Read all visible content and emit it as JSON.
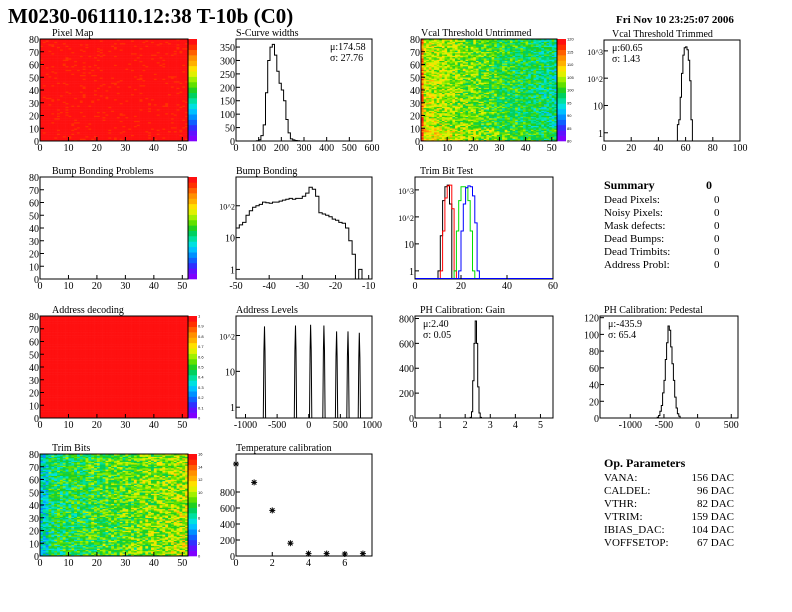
{
  "header": {
    "title": "M0230-061110.12:38 T-10b (C0)",
    "date": "Fri Nov 10 23:25:07 2006"
  },
  "summary": {
    "title": "Summary",
    "total": "0",
    "rows": [
      {
        "label": "Dead Pixels:",
        "value": "0"
      },
      {
        "label": "Noisy Pixels:",
        "value": "0"
      },
      {
        "label": "Mask defects:",
        "value": "0"
      },
      {
        "label": "Dead Bumps:",
        "value": "0"
      },
      {
        "label": "Dead Trimbits:",
        "value": "0"
      },
      {
        "label": "Address Probl:",
        "value": "0"
      }
    ]
  },
  "op_parameters": {
    "title": "Op. Parameters",
    "rows": [
      {
        "label": "VANA:",
        "value": "156 DAC"
      },
      {
        "label": "CALDEL:",
        "value": "96 DAC"
      },
      {
        "label": "VTHR:",
        "value": "82 DAC"
      },
      {
        "label": "VTRIM:",
        "value": "159 DAC"
      },
      {
        "label": "IBIAS_DAC:",
        "value": "104 DAC"
      },
      {
        "label": "VOFFSETOP:",
        "value": "67 DAC"
      }
    ]
  },
  "palette": [
    "#8000ff",
    "#6010ff",
    "#3030ff",
    "#1060ff",
    "#0090ff",
    "#00c0ff",
    "#00e0e0",
    "#00e0a0",
    "#00d060",
    "#20d020",
    "#60e000",
    "#a0f000",
    "#e0f000",
    "#ffe000",
    "#ffb000",
    "#ff9000",
    "#ff6000",
    "#ff3000",
    "#ff1010"
  ],
  "chart_data": [
    {
      "id": "pixel_map",
      "type": "heatmap",
      "title": "Pixel Map",
      "xlim": [
        0,
        52
      ],
      "ylim": [
        0,
        80
      ],
      "zlim": [
        0,
        10
      ],
      "xticks": [
        0,
        10,
        20,
        30,
        40,
        50
      ],
      "yticks": [
        0,
        10,
        20,
        30,
        40,
        50,
        60,
        70,
        80
      ],
      "palette_labels": []
    },
    {
      "id": "scurve_widths",
      "type": "bar",
      "title": "S-Curve widths",
      "xlim": [
        0,
        600
      ],
      "ylim": [
        0,
        380
      ],
      "log": false,
      "xticks": [
        0,
        100,
        200,
        300,
        400,
        500,
        600
      ],
      "yticks": [
        0,
        50,
        100,
        150,
        200,
        250,
        300,
        350
      ],
      "bin_width": 10,
      "x": [
        90,
        100,
        110,
        120,
        130,
        140,
        150,
        160,
        170,
        180,
        190,
        200,
        210,
        220,
        230,
        240,
        250,
        260,
        270,
        280
      ],
      "series": [
        {
          "color": "#000000",
          "values": [
            1,
            5,
            20,
            60,
            180,
            300,
            350,
            360,
            320,
            260,
            215,
            190,
            150,
            80,
            30,
            8,
            4,
            2,
            1,
            0
          ]
        }
      ],
      "stats": [
        "μ:174.58",
        "σ: 27.76"
      ]
    },
    {
      "id": "vcal_untrimmed",
      "type": "heatmap",
      "title": "Vcal Threshold Untrimmed",
      "xlim": [
        0,
        52
      ],
      "ylim": [
        0,
        80
      ],
      "zlim": [
        80,
        120
      ],
      "xticks": [
        0,
        10,
        20,
        30,
        40,
        50
      ],
      "yticks": [
        0,
        10,
        20,
        30,
        40,
        50,
        60,
        70,
        80
      ],
      "palette_labels": [
        "120",
        "115",
        "110",
        "105",
        "100",
        "95",
        "90",
        "85",
        "80"
      ]
    },
    {
      "id": "vcal_trimmed",
      "type": "bar",
      "title": "Vcal Threshold Trimmed",
      "xlim": [
        0,
        100
      ],
      "ylim": [
        0.5,
        2500
      ],
      "log": true,
      "xticks": [
        0,
        20,
        40,
        60,
        80,
        100
      ],
      "yticks": [
        1,
        10,
        100,
        1000
      ],
      "ytick_labels": [
        "1",
        "10",
        "10^2",
        "10^3"
      ],
      "bin_width": 1,
      "x": [
        54,
        55,
        56,
        57,
        58,
        59,
        60,
        61,
        62,
        63,
        64
      ],
      "series": [
        {
          "color": "#000000",
          "values": [
            2,
            3,
            20,
            150,
            700,
            1300,
            1400,
            1100,
            450,
            80,
            3
          ]
        }
      ],
      "stats": [
        "μ:60.65",
        "σ: 1.43"
      ]
    },
    {
      "id": "bump_bonding_problems",
      "type": "heatmap",
      "title": "Bump Bonding Problems",
      "xlim": [
        0,
        52
      ],
      "ylim": [
        0,
        80
      ],
      "zlim": [
        0,
        2
      ],
      "xticks": [
        0,
        10,
        20,
        30,
        40,
        50
      ],
      "yticks": [
        0,
        10,
        20,
        30,
        40,
        50,
        60,
        70,
        80
      ],
      "palette_labels": [],
      "empty": true
    },
    {
      "id": "bump_bonding",
      "type": "bar",
      "title": "Bump Bonding",
      "xlim": [
        -50,
        -9
      ],
      "ylim": [
        0.5,
        800
      ],
      "log": true,
      "xticks": [
        -50,
        -40,
        -30,
        -20,
        -10
      ],
      "yticks": [
        1,
        10,
        100
      ],
      "ytick_labels": [
        "1",
        "10",
        "10^2"
      ],
      "bin_width": 1,
      "x": [
        -50,
        -49,
        -48,
        -47,
        -46,
        -45,
        -44,
        -43,
        -42,
        -41,
        -40,
        -39,
        -38,
        -37,
        -36,
        -35,
        -34,
        -33,
        -32,
        -31,
        -30,
        -29,
        -28,
        -27,
        -26,
        -25,
        -24,
        -23,
        -22,
        -21,
        -20,
        -19,
        -18,
        -17,
        -16,
        -15,
        -14,
        -13,
        -12
      ],
      "series": [
        {
          "color": "#000000",
          "values": [
            20,
            25,
            30,
            50,
            70,
            90,
            100,
            110,
            130,
            125,
            120,
            130,
            130,
            140,
            150,
            160,
            170,
            160,
            170,
            170,
            200,
            250,
            380,
            330,
            200,
            60,
            55,
            50,
            45,
            38,
            35,
            30,
            28,
            20,
            8,
            3,
            0,
            1,
            0
          ]
        }
      ]
    },
    {
      "id": "trim_bit_test",
      "type": "bar",
      "title": "Trim Bit Test",
      "xlim": [
        0,
        60
      ],
      "ylim": [
        0.5,
        3000
      ],
      "log": true,
      "xticks": [
        0,
        20,
        40,
        60
      ],
      "yticks": [
        1,
        10,
        100,
        1000
      ],
      "ytick_labels": [
        "1",
        "10",
        "10^2",
        "10^3"
      ],
      "bin_width": 1,
      "series": [
        {
          "color": "#000000",
          "x0": 10,
          "values": [
            1,
            20,
            400,
            1300,
            1500,
            300
          ]
        },
        {
          "color": "#ff0000",
          "x0": 11,
          "values": [
            1,
            30,
            500,
            1400,
            1500,
            200,
            1
          ]
        },
        {
          "color": "#00dd00",
          "x0": 17,
          "values": [
            1,
            30,
            400,
            1300,
            1300,
            1200,
            400,
            30,
            1
          ]
        },
        {
          "color": "#0000ff",
          "x0": 19,
          "values": [
            1,
            30,
            300,
            1200,
            1400,
            1300,
            600,
            60,
            1
          ]
        }
      ]
    },
    {
      "id": "address_decoding",
      "type": "heatmap",
      "title": "Address decoding",
      "xlim": [
        0,
        52
      ],
      "ylim": [
        0,
        80
      ],
      "zlim": [
        0,
        1
      ],
      "xticks": [
        0,
        10,
        20,
        30,
        40,
        50
      ],
      "yticks": [
        0,
        10,
        20,
        30,
        40,
        50,
        60,
        70,
        80
      ],
      "palette_labels": [
        "1",
        "0.9",
        "0.8",
        "0.7",
        "0.6",
        "0.5",
        "0.4",
        "0.3",
        "0.2",
        "0.1",
        "0"
      ]
    },
    {
      "id": "address_levels",
      "type": "peaks",
      "title": "Address Levels",
      "xlim": [
        -1150,
        1000
      ],
      "ylim": [
        0.5,
        350
      ],
      "log": true,
      "xticks": [
        -1000,
        -500,
        0,
        500,
        1000
      ],
      "yticks": [
        1,
        10,
        100
      ],
      "ytick_labels": [
        "1",
        "10",
        "10^2"
      ],
      "peaks": [
        {
          "x": -700,
          "y": 180
        },
        {
          "x": -210,
          "y": 190
        },
        {
          "x": 30,
          "y": 200
        },
        {
          "x": 240,
          "y": 190
        },
        {
          "x": 440,
          "y": 130
        },
        {
          "x": 620,
          "y": 130
        },
        {
          "x": 800,
          "y": 120
        }
      ]
    },
    {
      "id": "ph_gain",
      "type": "bar",
      "title": "PH Calibration: Gain",
      "xlim": [
        0,
        5.5
      ],
      "ylim": [
        0,
        820
      ],
      "log": false,
      "xticks": [
        0,
        1,
        2,
        3,
        4,
        5
      ],
      "yticks": [
        0,
        200,
        400,
        600,
        800
      ],
      "bin_width": 0.05,
      "x": [
        2.2,
        2.25,
        2.3,
        2.35,
        2.4,
        2.45,
        2.5,
        2.55,
        2.6
      ],
      "series": [
        {
          "color": "#000000",
          "values": [
            5,
            50,
            300,
            600,
            780,
            600,
            250,
            40,
            5
          ]
        }
      ],
      "stats": [
        "μ:2.40",
        "σ: 0.05"
      ]
    },
    {
      "id": "ph_pedestal",
      "type": "bar",
      "title": "PH Calibration: Pedestal",
      "xlim": [
        -1450,
        600
      ],
      "ylim": [
        0,
        122
      ],
      "log": false,
      "xticks": [
        -1000,
        -500,
        0,
        500
      ],
      "yticks": [
        0,
        20,
        40,
        60,
        80,
        100,
        120
      ],
      "bin_width": 20,
      "x": [
        -600,
        -580,
        -560,
        -540,
        -520,
        -500,
        -480,
        -460,
        -440,
        -420,
        -400,
        -380,
        -360,
        -340,
        -320,
        -300,
        -280,
        -260
      ],
      "series": [
        {
          "color": "#000000",
          "values": [
            1,
            3,
            8,
            15,
            30,
            45,
            70,
            90,
            110,
            105,
            85,
            65,
            45,
            25,
            12,
            5,
            2,
            0
          ]
        }
      ],
      "stats": [
        "μ:-435.9",
        "σ: 65.4"
      ]
    },
    {
      "id": "trim_bits",
      "type": "heatmap",
      "title": "Trim Bits",
      "xlim": [
        0,
        52
      ],
      "ylim": [
        0,
        80
      ],
      "zlim": [
        0,
        16
      ],
      "xticks": [
        0,
        10,
        20,
        30,
        40,
        50
      ],
      "yticks": [
        0,
        10,
        20,
        30,
        40,
        50,
        60,
        70,
        80
      ],
      "palette_labels": [
        "16",
        "14",
        "12",
        "10",
        "8",
        "6",
        "4",
        "2",
        "0"
      ]
    },
    {
      "id": "temperature_calibration",
      "type": "scatter",
      "title": "Temperature calibration",
      "xlim": [
        0,
        7.5
      ],
      "ylim": [
        0,
        1275
      ],
      "log": false,
      "xticks": [
        0,
        2,
        4,
        6
      ],
      "yticks": [
        0,
        200,
        400,
        600,
        800
      ],
      "points": [
        {
          "x": 0,
          "y": 1150
        },
        {
          "x": 1,
          "y": 920
        },
        {
          "x": 2,
          "y": 570
        },
        {
          "x": 3,
          "y": 160
        },
        {
          "x": 4,
          "y": 30
        },
        {
          "x": 5,
          "y": 30
        },
        {
          "x": 6,
          "y": 25
        },
        {
          "x": 7,
          "y": 30
        }
      ]
    }
  ]
}
